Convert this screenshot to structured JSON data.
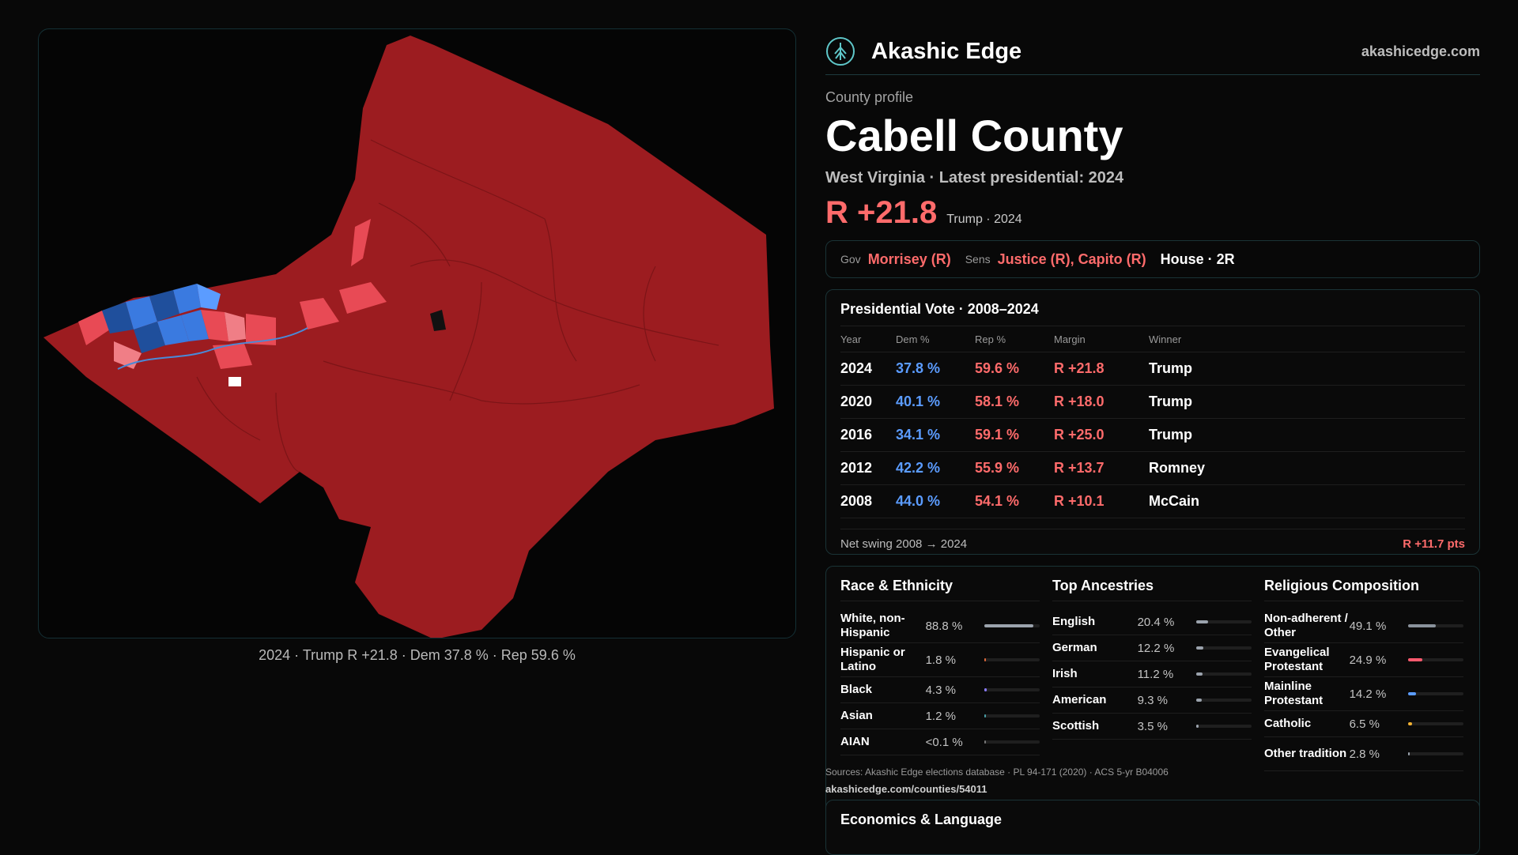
{
  "brand": {
    "name": "Akashic Edge",
    "site": "akashicedge.com",
    "logo_icon": "tree-logo-icon"
  },
  "profile": {
    "label": "County profile",
    "county": "Cabell County",
    "subtitle": "West Virginia · Latest presidential: 2024",
    "margin": "R +21.8",
    "margin_note": "Trump · 2024"
  },
  "officials": {
    "gov_label": "Gov",
    "gov": "Morrisey (R)",
    "sens_label": "Sens",
    "sens": "Justice (R), Capito (R)",
    "house": "House · 2R"
  },
  "presidential": {
    "title": "Presidential Vote · 2008–2024",
    "headers": [
      "Year",
      "Dem %",
      "Rep %",
      "Margin",
      "Winner"
    ],
    "rows": [
      [
        "2024",
        "37.8 %",
        "59.6 %",
        "R +21.8",
        "Trump"
      ],
      [
        "2020",
        "40.1 %",
        "58.1 %",
        "R +18.0",
        "Trump"
      ],
      [
        "2016",
        "34.1 %",
        "59.1 %",
        "R +25.0",
        "Trump"
      ],
      [
        "2012",
        "42.2 %",
        "55.9 %",
        "R +13.7",
        "Romney"
      ],
      [
        "2008",
        "44.0 %",
        "54.1 %",
        "R +10.1",
        "McCain"
      ]
    ],
    "swing_label": "Net swing 2008 → 2024",
    "swing_value": "R +11.7 pts"
  },
  "race": {
    "title": "Race & Ethnicity",
    "items": [
      {
        "name": "White, non-Hispanic",
        "value": "88.8 %",
        "pct": 88.8,
        "color": "#9ba3ad"
      },
      {
        "name": "Hispanic or Latino",
        "value": "1.8 %",
        "pct": 1.8,
        "color": "#e06a3a"
      },
      {
        "name": "Black",
        "value": "4.3 %",
        "pct": 4.3,
        "color": "#8a7cff"
      },
      {
        "name": "Asian",
        "value": "1.2 %",
        "pct": 1.2,
        "color": "#4aa0a8"
      },
      {
        "name": "AIAN",
        "value": "<0.1 %",
        "pct": 0.1,
        "color": "#777777"
      }
    ]
  },
  "ancestries": {
    "title": "Top Ancestries",
    "items": [
      {
        "name": "English",
        "value": "20.4 %",
        "pct": 20.4,
        "color": "#9ba3ad"
      },
      {
        "name": "German",
        "value": "12.2 %",
        "pct": 12.2,
        "color": "#9ba3ad"
      },
      {
        "name": "Irish",
        "value": "11.2 %",
        "pct": 11.2,
        "color": "#9ba3ad"
      },
      {
        "name": "American",
        "value": "9.3 %",
        "pct": 9.3,
        "color": "#9ba3ad"
      },
      {
        "name": "Scottish",
        "value": "3.5 %",
        "pct": 3.5,
        "color": "#9ba3ad"
      }
    ]
  },
  "religion": {
    "title": "Religious Composition",
    "items": [
      {
        "name": "Non-adherent / Other",
        "value": "49.1 %",
        "pct": 49.1,
        "color": "#8a929c"
      },
      {
        "name": "Evangelical Protestant",
        "value": "24.9 %",
        "pct": 24.9,
        "color": "#ff5a6e"
      },
      {
        "name": "Mainline Protestant",
        "value": "14.2 %",
        "pct": 14.2,
        "color": "#5b9cff"
      },
      {
        "name": "Catholic",
        "value": "6.5 %",
        "pct": 6.5,
        "color": "#f2b233"
      },
      {
        "name": "Other tradition",
        "value": "2.8 %",
        "pct": 2.8,
        "color": "#9ba3ad"
      }
    ]
  },
  "sources": {
    "text": "Sources: Akashic Edge elections database · PL 94-171 (2020) · ACS 5-yr B04006",
    "url": "akashicedge.com/counties/54011"
  },
  "economics": {
    "title": "Economics & Language"
  },
  "map": {
    "caption": "2024 · Trump R +21.8 · Dem 37.8 % · Rep 59.6 %",
    "colors": {
      "rep_strong": "#9c1c20",
      "rep_light": "#e84a55",
      "dem_strong": "#1f4f9c",
      "dem_light": "#3a7ae0"
    }
  }
}
